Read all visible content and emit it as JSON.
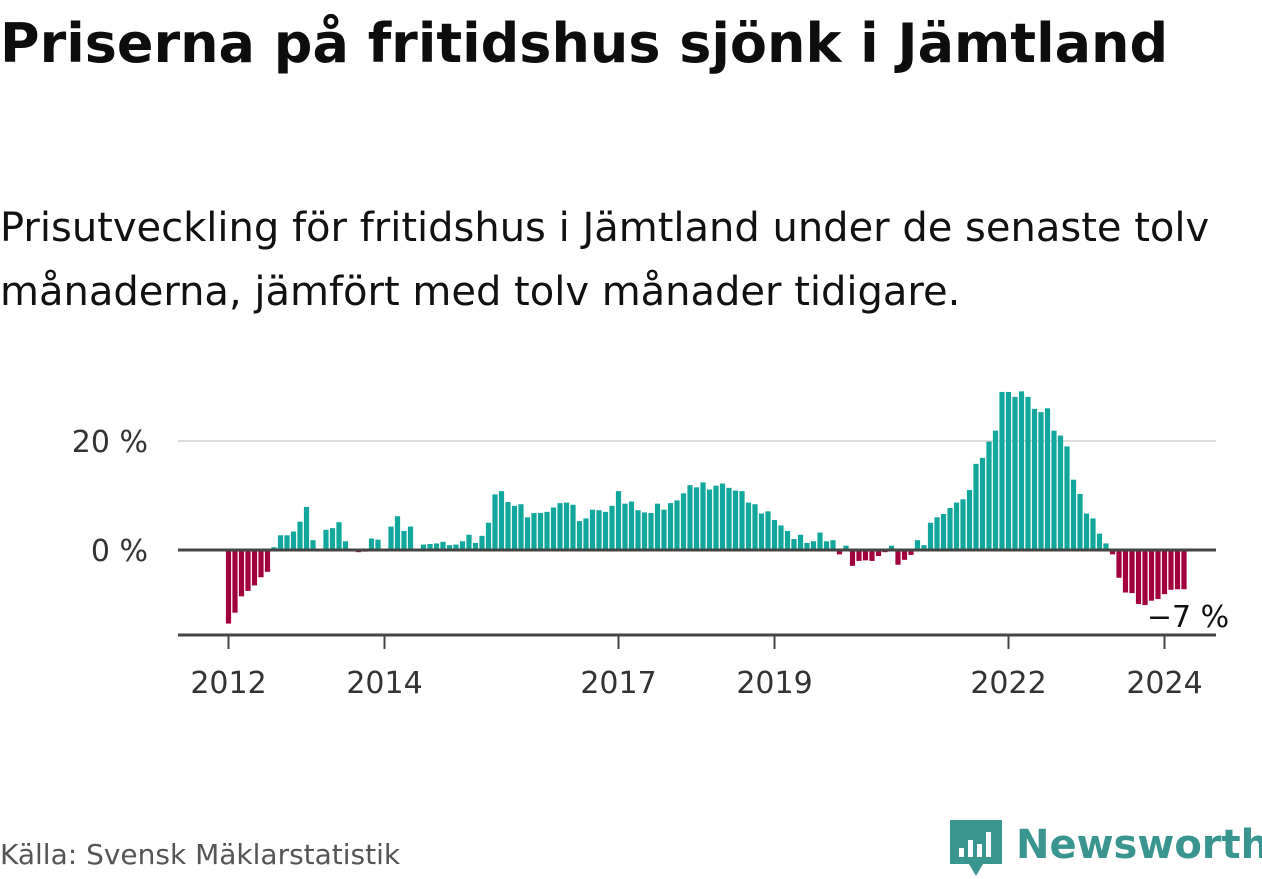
{
  "title": "Priserna på fritidshus sjönk i Jämtland",
  "subtitle": "Prisutveckling för fritidshus i Jämtland under de senaste tolv månaderna, jämfört med tolv månader tidigare.",
  "source": "Källa: Svensk Mäklarstatistik",
  "brand": {
    "name": "Newsworthy",
    "icon": "newsworthy-logo-icon",
    "color": "#3a9591"
  },
  "colors": {
    "positive": "#12a79d",
    "negative": "#a1003d",
    "axis": "#444444",
    "grid": "#dddddd"
  },
  "chart_data": {
    "type": "bar",
    "title": "Priserna på fritidshus sjönk i Jämtland",
    "xlabel": "",
    "ylabel": "",
    "unit": "%",
    "start": {
      "year": 2012,
      "month": 1
    },
    "ylim": [
      -15,
      30
    ],
    "yticks": [
      {
        "value": 20,
        "label": "20 %"
      },
      {
        "value": 0,
        "label": "0 %"
      }
    ],
    "xticks": [
      {
        "year": 2012,
        "label": "2012"
      },
      {
        "year": 2014,
        "label": "2014"
      },
      {
        "year": 2017,
        "label": "2017"
      },
      {
        "year": 2019,
        "label": "2019"
      },
      {
        "year": 2022,
        "label": "2022"
      },
      {
        "year": 2024,
        "label": "2024"
      }
    ],
    "grid": true,
    "end_label": "−7 %",
    "values": [
      -13.5,
      -11.5,
      -8.5,
      -7.5,
      -6.5,
      -5.0,
      -4.0,
      0.5,
      2.7,
      2.7,
      3.4,
      5.2,
      7.9,
      1.8,
      0.2,
      3.7,
      4.0,
      5.1,
      1.6,
      0.1,
      -0.4,
      -0.3,
      2.1,
      1.9,
      0.1,
      4.3,
      6.2,
      3.5,
      4.3,
      0.2,
      1.0,
      1.1,
      1.2,
      1.5,
      0.9,
      1.0,
      1.6,
      2.8,
      1.3,
      2.6,
      5.0,
      10.2,
      10.8,
      8.8,
      8.1,
      8.4,
      6.0,
      6.8,
      6.8,
      7.0,
      7.8,
      8.6,
      8.7,
      8.3,
      5.3,
      5.8,
      7.4,
      7.3,
      7.0,
      8.1,
      10.8,
      8.5,
      8.9,
      7.3,
      6.9,
      6.8,
      8.5,
      7.4,
      8.6,
      9.1,
      10.4,
      11.9,
      11.5,
      12.4,
      11.1,
      11.8,
      12.2,
      11.4,
      10.9,
      10.8,
      8.7,
      8.4,
      6.7,
      7.1,
      5.5,
      4.5,
      3.5,
      2.0,
      2.8,
      1.3,
      1.6,
      3.2,
      1.6,
      1.8,
      -0.8,
      0.8,
      -2.9,
      -2.0,
      -1.9,
      -2.0,
      -1.1,
      -0.4,
      0.8,
      -2.7,
      -1.8,
      -0.9,
      1.8,
      0.9,
      5.0,
      6.0,
      6.6,
      7.7,
      8.7,
      9.3,
      11.0,
      15.8,
      16.9,
      19.9,
      21.9,
      29.0,
      29.0,
      28.1,
      29.1,
      28.1,
      25.9,
      25.3,
      26.0,
      21.9,
      21.0,
      19.0,
      12.9,
      10.3,
      6.7,
      5.8,
      3.0,
      1.2,
      -0.8,
      -5.1,
      -7.8,
      -7.9,
      -9.9,
      -10.1,
      -9.3,
      -9.0,
      -8.1,
      -7.3,
      -7.2,
      -7.2
    ]
  }
}
